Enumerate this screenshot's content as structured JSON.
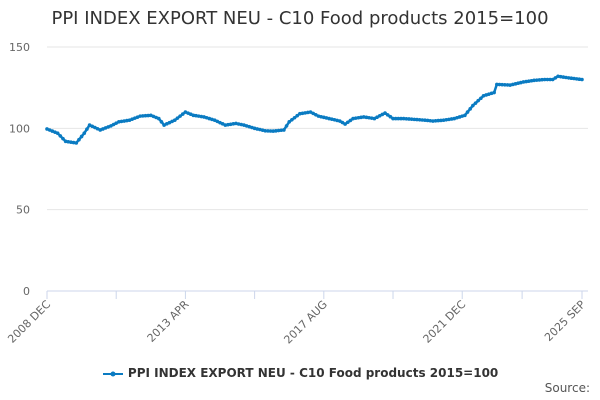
{
  "chart_data": {
    "type": "line",
    "title": "PPI INDEX EXPORT NEU - C10 Food products 2015=100",
    "xlabel": "",
    "ylabel": "",
    "ylim": [
      0,
      150
    ],
    "yticks": [
      "0",
      "50",
      "100",
      "150"
    ],
    "xticks": [
      {
        "label": "2008 DEC",
        "date": "2008-12"
      },
      {
        "label": "2013 APR",
        "date": "2013-04"
      },
      {
        "label": "2017 AUG",
        "date": "2017-08"
      },
      {
        "label": "2021 DEC",
        "date": "2021-12"
      },
      {
        "label": "2025 SEP",
        "date": "2025-09"
      }
    ],
    "grid": true,
    "legend_position": "bottom-center",
    "color": "#0a7bc2",
    "series": [
      {
        "name": "PPI INDEX EXPORT NEU - C10 Food products 2015=100",
        "x": [
          "2008-12",
          "2009-04",
          "2009-07",
          "2009-11",
          "2010-02",
          "2010-04",
          "2010-08",
          "2010-12",
          "2011-03",
          "2011-07",
          "2011-11",
          "2012-03",
          "2012-06",
          "2012-08",
          "2012-12",
          "2013-04",
          "2013-07",
          "2013-11",
          "2014-03",
          "2014-07",
          "2014-11",
          "2015-02",
          "2015-06",
          "2015-10",
          "2016-01",
          "2016-05",
          "2016-07",
          "2016-11",
          "2017-03",
          "2017-06",
          "2017-10",
          "2018-02",
          "2018-04",
          "2018-07",
          "2018-11",
          "2019-03",
          "2019-07",
          "2019-10",
          "2020-02",
          "2020-06",
          "2020-10",
          "2021-01",
          "2021-05",
          "2021-09",
          "2022-01",
          "2022-04",
          "2022-08",
          "2022-12",
          "2023-01",
          "2023-06",
          "2023-11",
          "2024-03",
          "2024-07",
          "2024-10",
          "2024-12",
          "2025-04",
          "2025-09"
        ],
        "values": [
          99.6,
          97,
          92,
          91,
          97,
          102,
          99,
          101.5,
          104,
          105,
          107.5,
          108,
          106,
          102,
          105,
          110,
          108,
          107,
          105,
          102,
          103,
          102,
          100,
          98.5,
          98.3,
          99,
          104,
          109,
          110,
          107.5,
          106,
          104.5,
          102.6,
          106,
          107,
          106,
          109.4,
          106,
          106,
          105.5,
          105,
          104.5,
          105,
          106,
          108,
          114,
          120,
          122,
          127,
          126.6,
          128.5,
          129.5,
          130,
          130,
          132,
          131,
          130
        ]
      }
    ]
  },
  "source_label": "Source:"
}
